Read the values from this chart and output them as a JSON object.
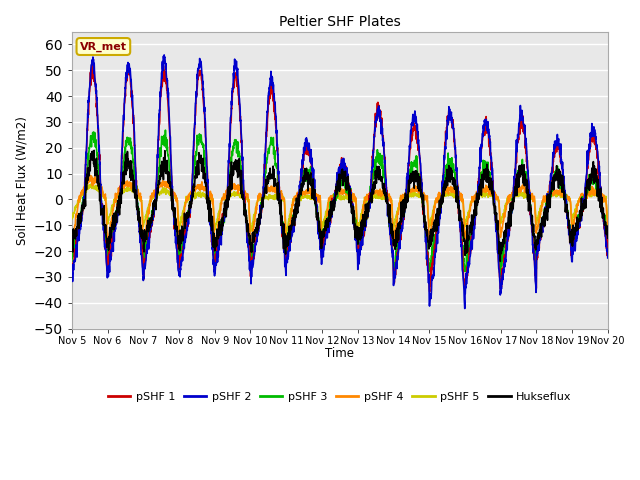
{
  "title": "Peltier SHF Plates",
  "xlabel": "Time",
  "ylabel": "Soil Heat Flux (W/m2)",
  "ylim": [
    -50,
    65
  ],
  "yticks": [
    -50,
    -40,
    -30,
    -20,
    -10,
    0,
    10,
    20,
    30,
    40,
    50,
    60
  ],
  "bg_color": "#ffffff",
  "plot_bg_color": "#e8e8e8",
  "annotation_text": "VR_met",
  "annotation_color": "#8B0000",
  "annotation_bg": "#ffffcc",
  "annotation_border": "#ccaa00",
  "series": {
    "pSHF 1": {
      "color": "#cc0000",
      "lw": 1.2
    },
    "pSHF 2": {
      "color": "#0000cc",
      "lw": 1.2
    },
    "pSHF 3": {
      "color": "#00bb00",
      "lw": 1.2
    },
    "pSHF 4": {
      "color": "#ff8800",
      "lw": 1.2
    },
    "pSHF 5": {
      "color": "#cccc00",
      "lw": 1.2
    },
    "Hukseflux": {
      "color": "#000000",
      "lw": 1.2
    }
  },
  "xtick_labels": [
    "Nov 5",
    "Nov 6",
    "Nov 7",
    "Nov 8",
    "Nov 9",
    "Nov 10",
    "Nov 11",
    "Nov 12",
    "Nov 13",
    "Nov 14",
    "Nov 15",
    "Nov 16",
    "Nov 17",
    "Nov 18",
    "Nov 19",
    "Nov 20"
  ],
  "n_days": 15,
  "pts_per_day": 144
}
